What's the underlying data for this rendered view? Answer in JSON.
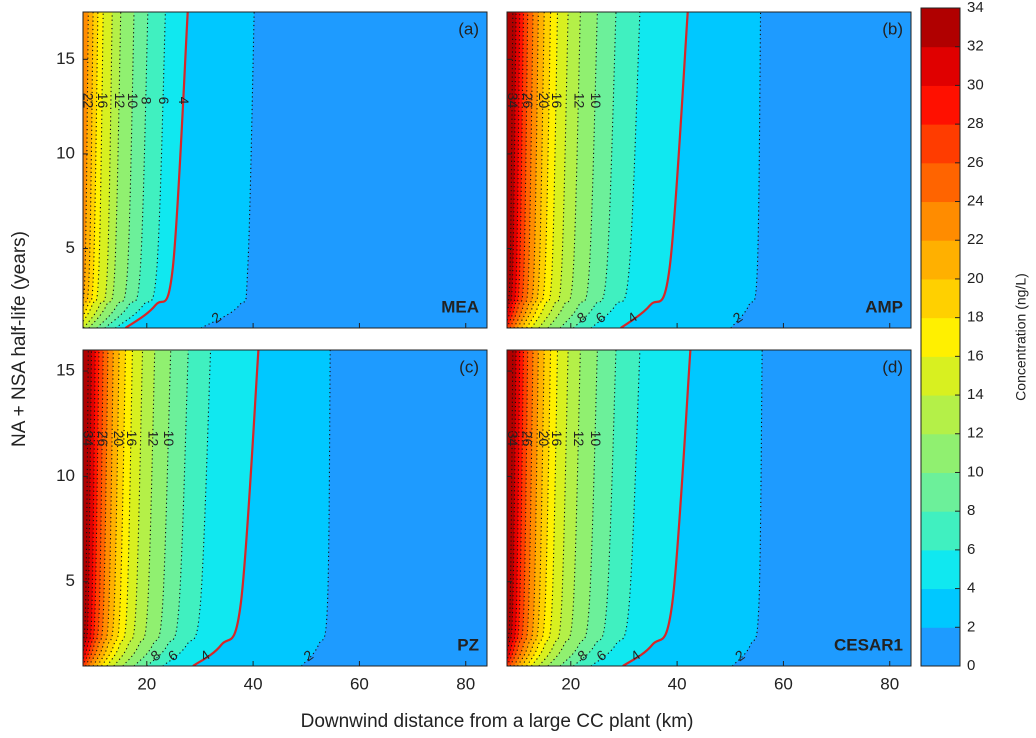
{
  "x_label": "Downwind distance from a large CC plant (km)",
  "y_label": "NA + NSA half-life (years)",
  "colorbar": {
    "label": "Concentration (ng/L)",
    "clim": [
      0,
      34
    ],
    "ticks": [
      0,
      2,
      4,
      6,
      8,
      10,
      12,
      14,
      16,
      18,
      20,
      22,
      24,
      26,
      28,
      30,
      32,
      34
    ],
    "colormap": [
      "#1e9bff",
      "#00c8ff",
      "#10e8f0",
      "#40f0c0",
      "#6cf09a",
      "#90f070",
      "#b4f048",
      "#d8f020",
      "#fff000",
      "#ffd000",
      "#ffb000",
      "#ff8c00",
      "#ff6400",
      "#ff3c00",
      "#ff1000",
      "#e00000",
      "#b00000"
    ]
  },
  "chart_data": [
    {
      "type": "contour",
      "panel_label": "(a)",
      "title": "MEA",
      "xlim": [
        8,
        84
      ],
      "ylim": [
        0.8,
        17.5
      ],
      "xticks": [
        20,
        40,
        60,
        80
      ],
      "yticks": [
        5,
        10,
        15
      ],
      "highlight_level": 4,
      "highlight_color": "#d62728",
      "contour_y": [
        0.8,
        2,
        4,
        17.5
      ],
      "contours": [
        {
          "level": 2,
          "x": [
            30.2,
            37.4,
            39,
            40.2
          ],
          "labeled": true
        },
        {
          "level": 4,
          "x": [
            16,
            21.6,
            24.9,
            27.7
          ],
          "labeled": true
        },
        {
          "level": 6,
          "x": [
            14.1,
            19.3,
            21.9,
            23.5
          ],
          "labeled": true
        },
        {
          "level": 8,
          "x": [
            12.1,
            16.6,
            18.8,
            20.2
          ],
          "labeled": true
        },
        {
          "level": 10,
          "x": [
            10.6,
            14.4,
            16.4,
            17.6
          ],
          "labeled": true
        },
        {
          "level": 12,
          "x": [
            9.1,
            12.4,
            14,
            15.1
          ],
          "labeled": true
        },
        {
          "level": 14,
          "x": [
            8.1,
            11.1,
            12.6,
            13.5
          ],
          "labeled": false
        },
        {
          "level": 16,
          "x": [
            7.1,
            9.7,
            11,
            11.8
          ],
          "labeled": true
        },
        {
          "level": 18,
          "x": [
            6.5,
            8.9,
            10,
            10.8
          ],
          "labeled": false
        },
        {
          "level": 20,
          "x": [
            5.9,
            8.1,
            9.2,
            9.9
          ],
          "labeled": false
        },
        {
          "level": 22,
          "x": [
            5.4,
            7.4,
            8.4,
            9
          ],
          "labeled": true
        }
      ]
    },
    {
      "type": "contour",
      "panel_label": "(b)",
      "title": "AMP",
      "xlim": [
        8,
        84
      ],
      "ylim": [
        0.8,
        17.5
      ],
      "xticks": [
        20,
        40,
        60,
        80
      ],
      "yticks": [
        5,
        10,
        15
      ],
      "highlight_level": 4,
      "highlight_color": "#d62728",
      "contour_y": [
        0.8,
        2,
        4,
        17.5
      ],
      "contours": [
        {
          "level": 2,
          "x": [
            50.1,
            53.5,
            55.1,
            55.7
          ],
          "labeled": true
        },
        {
          "level": 4,
          "x": [
            29.4,
            34.9,
            38.6,
            42
          ],
          "labeled": true
        },
        {
          "level": 6,
          "x": [
            23.8,
            28.4,
            31,
            33
          ],
          "labeled": true
        },
        {
          "level": 8,
          "x": [
            20.5,
            24.5,
            26.8,
            28.5
          ],
          "labeled": true
        },
        {
          "level": 10,
          "x": [
            18,
            21.5,
            23.5,
            25
          ],
          "labeled": true
        },
        {
          "level": 12,
          "x": [
            15.7,
            18.7,
            20.5,
            21.8
          ],
          "labeled": true
        },
        {
          "level": 14,
          "x": [
            14,
            16.8,
            18.3,
            19.5
          ],
          "labeled": false
        },
        {
          "level": 16,
          "x": [
            12.6,
            15.1,
            16.5,
            17.5
          ],
          "labeled": true
        },
        {
          "level": 18,
          "x": [
            11.7,
            13.9,
            15.2,
            16.2
          ],
          "labeled": false
        },
        {
          "level": 20,
          "x": [
            10.8,
            12.9,
            14.1,
            15
          ],
          "labeled": true
        },
        {
          "level": 22,
          "x": [
            10,
            12,
            13.1,
            13.9
          ],
          "labeled": false
        },
        {
          "level": 24,
          "x": [
            9.3,
            11.1,
            12.1,
            12.9
          ],
          "labeled": false
        },
        {
          "level": 26,
          "x": [
            8.6,
            10.2,
            11.2,
            11.9
          ],
          "labeled": true
        },
        {
          "level": 28,
          "x": [
            8,
            9.5,
            10.4,
            11.1
          ],
          "labeled": false
        },
        {
          "level": 30,
          "x": [
            7.5,
            8.9,
            9.8,
            10.4
          ],
          "labeled": false
        },
        {
          "level": 32,
          "x": [
            7,
            8.3,
            9.1,
            9.7
          ],
          "labeled": false
        },
        {
          "level": 34,
          "x": [
            6.6,
            7.8,
            8.6,
            9.1
          ],
          "labeled": true
        }
      ]
    },
    {
      "type": "contour",
      "panel_label": "(c)",
      "title": "PZ",
      "xlim": [
        8,
        84
      ],
      "ylim": [
        1,
        16
      ],
      "xticks": [
        20,
        40,
        60,
        80
      ],
      "yticks": [
        5,
        10,
        15
      ],
      "highlight_level": 4,
      "highlight_color": "#d62728",
      "contour_y": [
        1,
        2,
        4,
        16
      ],
      "contours": [
        {
          "level": 2,
          "x": [
            49.1,
            52.3,
            54,
            54.5
          ],
          "labeled": true
        },
        {
          "level": 4,
          "x": [
            28.7,
            34,
            37.7,
            41
          ],
          "labeled": true
        },
        {
          "level": 6,
          "x": [
            23,
            27.5,
            30.1,
            32
          ],
          "labeled": true
        },
        {
          "level": 8,
          "x": [
            20,
            23.9,
            26.1,
            27.8
          ],
          "labeled": true
        },
        {
          "level": 10,
          "x": [
            17.6,
            21.1,
            23,
            24.5
          ],
          "labeled": true
        },
        {
          "level": 12,
          "x": [
            15.5,
            18.5,
            20.2,
            21.5
          ],
          "labeled": true
        },
        {
          "level": 14,
          "x": [
            13.8,
            16.5,
            18,
            19.2
          ],
          "labeled": false
        },
        {
          "level": 16,
          "x": [
            12.5,
            14.9,
            16.3,
            17.3
          ],
          "labeled": true
        },
        {
          "level": 18,
          "x": [
            11.5,
            13.8,
            15,
            16
          ],
          "labeled": false
        },
        {
          "level": 20,
          "x": [
            10.7,
            12.7,
            13.9,
            14.8
          ],
          "labeled": true
        },
        {
          "level": 22,
          "x": [
            9.9,
            11.8,
            12.9,
            13.7
          ],
          "labeled": false
        },
        {
          "level": 24,
          "x": [
            9.1,
            10.9,
            11.9,
            12.7
          ],
          "labeled": false
        },
        {
          "level": 26,
          "x": [
            8.5,
            10.1,
            11.1,
            11.8
          ],
          "labeled": true
        },
        {
          "level": 28,
          "x": [
            7.9,
            9.5,
            10.3,
            11
          ],
          "labeled": false
        },
        {
          "level": 30,
          "x": [
            7.4,
            8.9,
            9.7,
            10.3
          ],
          "labeled": false
        },
        {
          "level": 32,
          "x": [
            6.9,
            8.3,
            9,
            9.6
          ],
          "labeled": false
        },
        {
          "level": 34,
          "x": [
            6.5,
            7.7,
            8.5,
            9
          ],
          "labeled": true
        }
      ]
    },
    {
      "type": "contour",
      "panel_label": "(d)",
      "title": "CESAR1",
      "xlim": [
        8,
        84
      ],
      "ylim": [
        1,
        16
      ],
      "xticks": [
        20,
        40,
        60,
        80
      ],
      "yticks": [
        5,
        10,
        15
      ],
      "highlight_level": 4,
      "highlight_color": "#d62728",
      "contour_y": [
        1,
        2,
        4,
        16
      ],
      "contours": [
        {
          "level": 2,
          "x": [
            50.4,
            53.8,
            55.4,
            56
          ],
          "labeled": true
        },
        {
          "level": 4,
          "x": [
            29.8,
            35.3,
            39.1,
            42.5
          ],
          "labeled": true
        },
        {
          "level": 6,
          "x": [
            23.8,
            28.4,
            31,
            33
          ],
          "labeled": true
        },
        {
          "level": 8,
          "x": [
            20.5,
            24.5,
            26.8,
            28.5
          ],
          "labeled": true
        },
        {
          "level": 10,
          "x": [
            18,
            21.5,
            23.5,
            25
          ],
          "labeled": true
        },
        {
          "level": 12,
          "x": [
            15.7,
            18.7,
            20.5,
            21.8
          ],
          "labeled": true
        },
        {
          "level": 14,
          "x": [
            14,
            16.8,
            18.3,
            19.5
          ],
          "labeled": false
        },
        {
          "level": 16,
          "x": [
            12.6,
            15.1,
            16.5,
            17.5
          ],
          "labeled": true
        },
        {
          "level": 18,
          "x": [
            11.7,
            13.9,
            15.2,
            16.2
          ],
          "labeled": false
        },
        {
          "level": 20,
          "x": [
            10.8,
            12.9,
            14.1,
            15
          ],
          "labeled": true
        },
        {
          "level": 22,
          "x": [
            10,
            12,
            13.1,
            13.9
          ],
          "labeled": false
        },
        {
          "level": 24,
          "x": [
            9.3,
            11.1,
            12.1,
            12.9
          ],
          "labeled": false
        },
        {
          "level": 26,
          "x": [
            8.6,
            10.2,
            11.2,
            11.9
          ],
          "labeled": true
        },
        {
          "level": 28,
          "x": [
            8,
            9.5,
            10.4,
            11.1
          ],
          "labeled": false
        },
        {
          "level": 30,
          "x": [
            7.5,
            8.9,
            9.8,
            10.4
          ],
          "labeled": false
        },
        {
          "level": 32,
          "x": [
            7,
            8.3,
            9.1,
            9.7
          ],
          "labeled": false
        },
        {
          "level": 34,
          "x": [
            6.6,
            7.8,
            8.6,
            9.1
          ],
          "labeled": true
        }
      ]
    }
  ]
}
